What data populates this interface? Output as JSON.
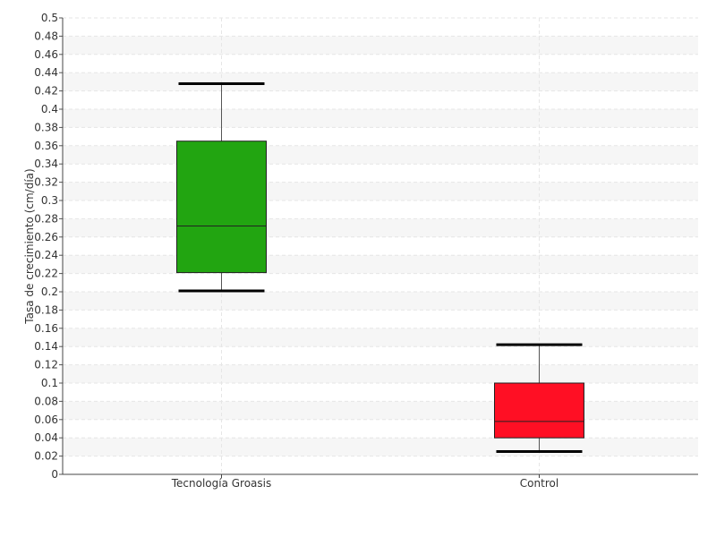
{
  "chart_data": {
    "type": "box",
    "title": "",
    "xlabel": "",
    "ylabel": "Tasa de crecimiento (cm/día)",
    "ylim": [
      0,
      0.5
    ],
    "y_tick_step": 0.02,
    "y_ticks": [
      "0",
      "0.02",
      "0.04",
      "0.06",
      "0.08",
      "0.1",
      "0.12",
      "0.14",
      "0.16",
      "0.18",
      "0.2",
      "0.22",
      "0.24",
      "0.26",
      "0.28",
      "0.3",
      "0.32",
      "0.34",
      "0.36",
      "0.38",
      "0.4",
      "0.42",
      "0.44",
      "0.46",
      "0.48",
      "0.5"
    ],
    "grid": true,
    "categories": [
      "Tecnología Groasis",
      "Control"
    ],
    "boxes": [
      {
        "category": "Tecnología Groasis",
        "min": 0.201,
        "q1": 0.221,
        "median": 0.272,
        "q3": 0.365,
        "max": 0.428,
        "color": "#22a511"
      },
      {
        "category": "Control",
        "min": 0.025,
        "q1": 0.04,
        "median": 0.058,
        "q3": 0.1,
        "max": 0.142,
        "color": "#ff0f24"
      }
    ]
  }
}
